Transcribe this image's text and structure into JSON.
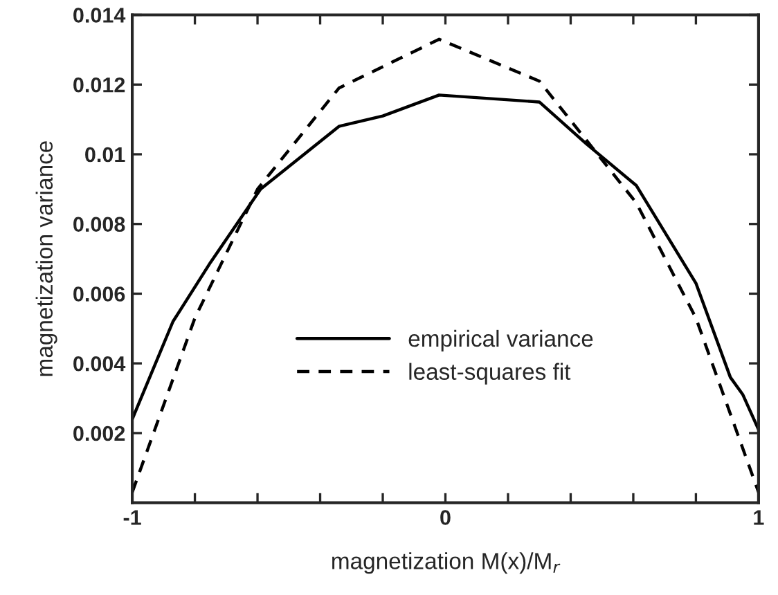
{
  "chart_data": {
    "type": "line",
    "xlabel": "magnetization M(x)/M$_{r}$",
    "ylabel": "magnetization variance",
    "xlim": [
      -1,
      1
    ],
    "ylim": [
      0,
      0.014
    ],
    "xticks": [
      -1,
      {
        "value": -0.8,
        "label": null
      },
      {
        "value": -0.6,
        "label": null
      },
      {
        "value": -0.4,
        "label": null
      },
      {
        "value": -0.2,
        "label": null
      },
      0,
      {
        "value": 0.2,
        "label": null
      },
      {
        "value": 0.4,
        "label": null
      },
      {
        "value": 0.6,
        "label": null
      },
      {
        "value": 0.8,
        "label": null
      },
      1
    ],
    "yticks": [
      0.002,
      0.004,
      0.006,
      0.008,
      0.01,
      0.012,
      0.014
    ],
    "grid": false,
    "legend": "bottom",
    "series": [
      {
        "name": "empirical variance",
        "color": "#000000",
        "line_style": "solid",
        "x": [
          -1,
          -0.87,
          -0.75,
          -0.59,
          -0.34,
          -0.2,
          -0.02,
          0.3,
          0.45,
          0.61,
          0.8,
          0.91,
          0.95,
          0.99,
          1
        ],
        "values": [
          0.0024,
          0.0052,
          0.0069,
          0.009,
          0.0108,
          0.0111,
          0.0117,
          0.0115,
          0.0103,
          0.0091,
          0.0063,
          0.0036,
          0.0031,
          0.0023,
          0.0021
        ]
      },
      {
        "name": "least-squares fit",
        "color": "#000000",
        "line_style": "dashed",
        "x": [
          -1,
          -0.8,
          -0.6,
          -0.34,
          -0.02,
          0.3,
          0.61,
          0.8,
          1
        ],
        "values": [
          0.0003,
          0.0053,
          0.009,
          0.0119,
          0.0133,
          0.0121,
          0.0086,
          0.0053,
          0.0003
        ]
      }
    ]
  }
}
